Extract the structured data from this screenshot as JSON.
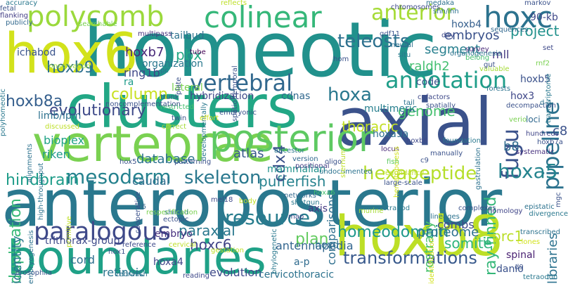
{
  "words": [
    {
      "text": "homeotic",
      "color": "#21918c"
    },
    {
      "text": "anteroposterior",
      "color": "#2a788e"
    },
    {
      "text": "axial",
      "color": "#3b528b"
    },
    {
      "text": "clusters",
      "color": "#22a785"
    },
    {
      "text": "vertebrae",
      "color": "#7ad151"
    },
    {
      "text": "hoxb8",
      "color": "#bddf26"
    },
    {
      "text": "boundaries",
      "color": "#1fa187"
    },
    {
      "text": "hox6",
      "color": "#d2e21b"
    },
    {
      "text": "posterior",
      "color": "#5ec962"
    },
    {
      "text": "polycomb",
      "color": "#9bd93c"
    },
    {
      "text": "colinear",
      "color": "#35b779"
    },
    {
      "text": "hoxc",
      "color": "#2c728e"
    },
    {
      "text": "anterior",
      "color": "#a5db36"
    },
    {
      "text": "paralogous",
      "color": "#3e4989"
    },
    {
      "text": "vertebral",
      "color": "#31688e"
    },
    {
      "text": "annotation",
      "color": "#1f9e89"
    },
    {
      "text": "hoxa",
      "color": "#2a788e"
    },
    {
      "text": "pipeline",
      "color": "#2c728e"
    },
    {
      "text": "fugu",
      "color": "#3b528b"
    },
    {
      "text": "resource",
      "color": "#287d8e"
    },
    {
      "text": "hoxa5",
      "color": "#25848e"
    },
    {
      "text": "skeleton",
      "color": "#2a788e"
    },
    {
      "text": "mesoderm",
      "color": "#26828e"
    },
    {
      "text": "hexapeptide",
      "color": "#b5de2b"
    },
    {
      "text": "teleosts",
      "color": "#2d708e"
    },
    {
      "text": "transformations",
      "color": "#38598c"
    },
    {
      "text": "homeodomain",
      "color": "#1f988b"
    },
    {
      "text": "evolutionary",
      "color": "#3e4a89"
    },
    {
      "text": "column",
      "color": "#c8e020"
    },
    {
      "text": "ray-finned",
      "color": "#35b779"
    },
    {
      "text": "duplication",
      "color": "#38b977"
    },
    {
      "text": "hindbrain",
      "color": "#1e9c89"
    },
    {
      "text": "pufferfish",
      "color": "#26828e"
    },
    {
      "text": "plan",
      "color": "#63cb5f"
    },
    {
      "text": "somite",
      "color": "#2fb47c"
    },
    {
      "text": "hoxb9",
      "color": "#2d708e"
    },
    {
      "text": "hoxb8a",
      "color": "#355f8d"
    },
    {
      "text": "pbx",
      "color": "#22a884"
    },
    {
      "text": "hoxb7",
      "color": "#482878"
    },
    {
      "text": "cdx4",
      "color": "#3b528b"
    },
    {
      "text": "paraxial",
      "color": "#2a788e"
    },
    {
      "text": "genome",
      "color": "#46c06f"
    },
    {
      "text": "thoracic",
      "color": "#c2df23"
    },
    {
      "text": "hoxc6",
      "color": "#414487"
    },
    {
      "text": "prc1",
      "color": "#bade28"
    },
    {
      "text": "rostrally",
      "color": "#4ac16d"
    },
    {
      "text": "project",
      "color": "#21918c"
    },
    {
      "text": "embryos",
      "color": "#3b528b"
    },
    {
      "text": "segment",
      "color": "#277f8e"
    },
    {
      "text": "raldh2",
      "color": "#44bf70"
    },
    {
      "text": "identity",
      "color": "#2a788e"
    },
    {
      "text": "bioplex",
      "color": "#20a386"
    },
    {
      "text": "riken",
      "color": "#1f9a8a"
    },
    {
      "text": "atlas",
      "color": "#38588c"
    },
    {
      "text": "database",
      "color": "#2c738e"
    },
    {
      "text": "caudal",
      "color": "#2e6e8e"
    },
    {
      "text": "mammalian",
      "color": "#21918c"
    },
    {
      "text": "comparisons",
      "color": "#2e6f8e"
    },
    {
      "text": "antennapedia",
      "color": "#32658e"
    },
    {
      "text": "combs",
      "color": "#3e4989"
    },
    {
      "text": "proteome",
      "color": "#2d718e"
    },
    {
      "text": "ring1b",
      "color": "#3f4788"
    },
    {
      "text": "ra",
      "color": "#1e9b8a"
    },
    {
      "text": "organization",
      "color": "#2a788e"
    },
    {
      "text": "tailbud",
      "color": "#2c728e"
    },
    {
      "text": "ichabod",
      "color": "#3a548c"
    },
    {
      "text": "limb/lpm",
      "color": "#2d718e"
    },
    {
      "text": "lateral",
      "color": "#7ad151"
    },
    {
      "text": "hybridization",
      "color": "#3f4889"
    },
    {
      "text": "cdnas",
      "color": "#31688e"
    },
    {
      "text": "b8",
      "color": "#2f6b8e"
    },
    {
      "text": "c8",
      "color": "#3b528b"
    },
    {
      "text": "hoxb5",
      "color": "#3b528b"
    },
    {
      "text": "hox3",
      "color": "#3f4788"
    },
    {
      "text": "hoxb4",
      "color": "#355f8d"
    },
    {
      "text": "90-kb",
      "color": "#3f4889"
    },
    {
      "text": "mll",
      "color": "#453882"
    },
    {
      "text": "code",
      "color": "#3b528b"
    },
    {
      "text": "multimeric",
      "color": "#277f8e"
    },
    {
      "text": "hoxa9a",
      "color": "#2e6e8e"
    },
    {
      "text": "trithorax-group",
      "color": "#3e4989"
    },
    {
      "text": "cord",
      "color": "#2e6f8e"
    },
    {
      "text": "retinoic",
      "color": "#2b758e"
    },
    {
      "text": "evolution",
      "color": "#3e4a89"
    },
    {
      "text": "cervicothoracic",
      "color": "#2c728e"
    },
    {
      "text": "hoxa4",
      "color": "#404588"
    },
    {
      "text": "hoxd",
      "color": "#2d718e"
    },
    {
      "text": "spinal",
      "color": "#481f71"
    },
    {
      "text": "danio",
      "color": "#3b528b"
    },
    {
      "text": "libraries",
      "color": "#2c728e"
    },
    {
      "text": "embryo",
      "color": "#46307e"
    },
    {
      "text": "axis",
      "color": "#443a83"
    },
    {
      "text": "a-p",
      "color": "#2f6b8e"
    },
    {
      "text": "hindbrain2",
      "color": "#1e9c89"
    },
    {
      "text": "accuracy",
      "color": "#2a788e"
    },
    {
      "text": "publicly",
      "color": "#31688e"
    },
    {
      "text": "fetal",
      "color": "#3b528b"
    },
    {
      "text": "flanking",
      "color": "#433e85"
    },
    {
      "text": "searchable",
      "color": "#7ad151"
    },
    {
      "text": "tube",
      "color": "#440154"
    },
    {
      "text": "trunk",
      "color": "#38588c"
    },
    {
      "text": "restricted",
      "color": "#46c06f"
    },
    {
      "text": "noncomplementation",
      "color": "#3b528b"
    },
    {
      "text": "conservation",
      "color": "#a5db36"
    },
    {
      "text": "spatio-temporal",
      "color": "#3b528b"
    },
    {
      "text": "developmentally",
      "color": "#2a788e"
    },
    {
      "text": "multipass",
      "color": "#46307e"
    },
    {
      "text": "plate",
      "color": "#3b528b"
    },
    {
      "text": "reflects",
      "color": "#bddf26"
    },
    {
      "text": "medaka",
      "color": "#2d718e"
    },
    {
      "text": "chromosomes",
      "color": "#3e4989"
    },
    {
      "text": "shh/ihh",
      "color": "#2c728e"
    },
    {
      "text": "markov",
      "color": "#3b528b"
    },
    {
      "text": "transcriptome",
      "color": "#2a788e"
    },
    {
      "text": "sequences",
      "color": "#31688e"
    },
    {
      "text": "organogenesis",
      "color": "#2c728e"
    },
    {
      "text": "survey",
      "color": "#482878"
    },
    {
      "text": "belong",
      "color": "#46c06f"
    },
    {
      "text": "forests",
      "color": "#2c728e"
    },
    {
      "text": "decompaction",
      "color": "#3b528b"
    },
    {
      "text": "verio",
      "color": "#7ad151"
    },
    {
      "text": "loci",
      "color": "#31688e"
    },
    {
      "text": "hundreds",
      "color": "#404588"
    },
    {
      "text": "hoxb7a",
      "color": "#3b528b"
    },
    {
      "text": "systematic",
      "color": "#46307e"
    },
    {
      "text": "gastrulation",
      "color": "#2c728e"
    },
    {
      "text": "foundation",
      "color": "#2a788e"
    },
    {
      "text": "manually",
      "color": "#3b528b"
    },
    {
      "text": "locus",
      "color": "#482878"
    },
    {
      "text": "hematopoiesis",
      "color": "#d2e21b"
    },
    {
      "text": "cofactors",
      "color": "#3e4989"
    },
    {
      "text": "spatially",
      "color": "#3b528b"
    },
    {
      "text": "tail",
      "color": "#2c728e"
    },
    {
      "text": "rnf2",
      "color": "#7ad151"
    },
    {
      "text": "gdf11",
      "color": "#3b528b"
    },
    {
      "text": "neural",
      "color": "#2c728e"
    },
    {
      "text": "day",
      "color": "#3e4989"
    },
    {
      "text": "set",
      "color": "#3e4989"
    },
    {
      "text": "valuable",
      "color": "#a5db36"
    },
    {
      "text": "situ",
      "color": "#2a788e"
    },
    {
      "text": "hom",
      "color": "#3b528b"
    },
    {
      "text": "ancestor",
      "color": "#2a788e"
    },
    {
      "text": "version",
      "color": "#31688e"
    },
    {
      "text": "positional",
      "color": "#433e85"
    },
    {
      "text": "oligo",
      "color": "#3b528b"
    },
    {
      "text": "undocumented",
      "color": "#2c728e"
    },
    {
      "text": "fish",
      "color": "#5ec962"
    },
    {
      "text": "redundancy",
      "color": "#bddf26"
    },
    {
      "text": "large-scale",
      "color": "#3b528b"
    },
    {
      "text": "tetrapod",
      "color": "#2a788e"
    },
    {
      "text": "murine",
      "color": "#a5db36"
    },
    {
      "text": "lineages",
      "color": "#2c728e"
    },
    {
      "text": "complexes",
      "color": "#3b528b"
    },
    {
      "text": "homology",
      "color": "#404588"
    },
    {
      "text": "divergence",
      "color": "#2a788e"
    },
    {
      "text": "epistatic",
      "color": "#2c728e"
    },
    {
      "text": "mgc",
      "color": "#3b528b"
    },
    {
      "text": "clones",
      "color": "#d2e21b"
    },
    {
      "text": "transcribed",
      "color": "#2c728e"
    },
    {
      "text": "identification",
      "color": "#d2e21b"
    },
    {
      "text": "shotgun",
      "color": "#2a788e"
    },
    {
      "text": "networks",
      "color": "#31688e"
    },
    {
      "text": "hoxa6",
      "color": "#46c06f"
    },
    {
      "text": "ectopic",
      "color": "#3b528b"
    },
    {
      "text": "shifted",
      "color": "#2c728e"
    },
    {
      "text": "body",
      "color": "#bddf26"
    },
    {
      "text": "mel18",
      "color": "#3e4989"
    },
    {
      "text": "respecification",
      "color": "#7ad151"
    },
    {
      "text": "phylogenetic",
      "color": "#2a788e"
    },
    {
      "text": "map",
      "color": "#3e4989"
    },
    {
      "text": "cervical",
      "color": "#bddf26"
    },
    {
      "text": "gestation",
      "color": "#bddf26"
    },
    {
      "text": "hox1",
      "color": "#3b528b"
    },
    {
      "text": "zebrafish",
      "color": "#2c728e"
    },
    {
      "text": "reading",
      "color": "#3e4989"
    },
    {
      "text": "drosophila",
      "color": "#3b528b"
    },
    {
      "text": "embryogenesis",
      "color": "#2c728e"
    },
    {
      "text": "reference",
      "color": "#3e4989"
    },
    {
      "text": "c6",
      "color": "#31688e"
    },
    {
      "text": "primitive",
      "color": "#bddf26"
    },
    {
      "text": "twin",
      "color": "#3b528b"
    },
    {
      "text": "effort",
      "color": "#d2e21b"
    },
    {
      "text": "embryonic",
      "color": "#3b528b"
    },
    {
      "text": "correct",
      "color": "#a5db36"
    },
    {
      "text": "discussed",
      "color": "#bddf26"
    },
    {
      "text": "alignments",
      "color": "#2c728e"
    },
    {
      "text": "high-throughput",
      "color": "#2c728e"
    },
    {
      "text": "patterning",
      "color": "#3b528b"
    },
    {
      "text": "cooperative",
      "color": "#3b528b"
    },
    {
      "text": "hoxb6",
      "color": "#3e4989"
    },
    {
      "text": "hox5",
      "color": "#3b528b"
    },
    {
      "text": "polyhomeotic",
      "color": "#2a788e"
    },
    {
      "text": "c9",
      "color": "#3b528b"
    },
    {
      "text": "d-4",
      "color": "#2c728e"
    },
    {
      "text": "sternum",
      "color": "#bddf26"
    },
    {
      "text": "gut",
      "color": "#3b528b"
    },
    {
      "text": "d9",
      "color": "#3b528b"
    },
    {
      "text": "tetraodon",
      "color": "#2a788e"
    },
    {
      "text": "pc",
      "color": "#2c728e"
    }
  ]
}
